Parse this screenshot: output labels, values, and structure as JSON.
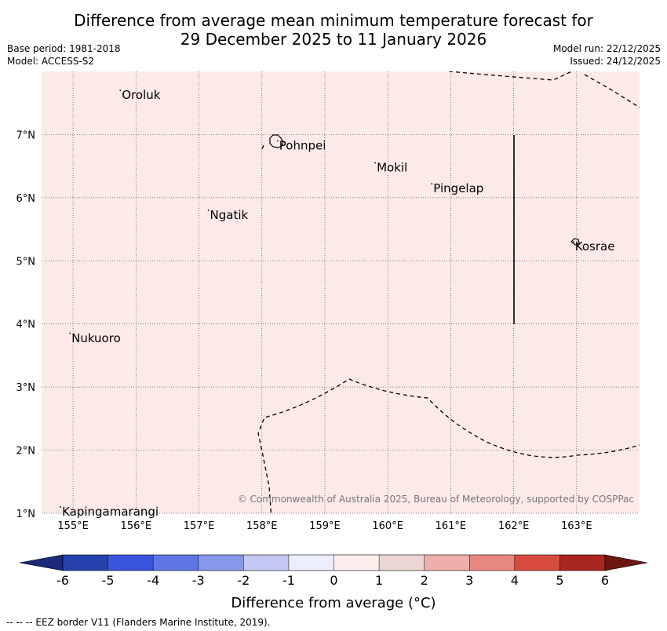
{
  "header": {
    "title_line1": "Difference from average mean minimum temperature forecast for",
    "title_line2": "29 December 2025 to 11 January 2026",
    "base_period": "Base period: 1981-2018",
    "model": "Model: ACCESS-S2",
    "model_run": "Model run: 22/12/2025",
    "issued": "Issued: 24/12/2025"
  },
  "map": {
    "lon_labels": [
      "155°E",
      "156°E",
      "157°E",
      "158°E",
      "159°E",
      "160°E",
      "161°E",
      "162°E",
      "163°E"
    ],
    "lat_labels": [
      "7°N",
      "6°N",
      "5°N",
      "4°N",
      "3°N",
      "2°N",
      "1°N"
    ],
    "places": [
      {
        "name": "Oroluk",
        "lon": 155.75,
        "lat": 7.7
      },
      {
        "name": "Pohnpei",
        "lon": 158.25,
        "lat": 6.9
      },
      {
        "name": "Mokil",
        "lon": 159.8,
        "lat": 6.55
      },
      {
        "name": "Pingelap",
        "lon": 160.7,
        "lat": 6.22
      },
      {
        "name": "Ngatik",
        "lon": 157.15,
        "lat": 5.8
      },
      {
        "name": "Kosrae",
        "lon": 162.95,
        "lat": 5.3
      },
      {
        "name": "Nukuoro",
        "lon": 154.95,
        "lat": 3.85
      },
      {
        "name": "Kapingamarangi",
        "lon": 154.8,
        "lat": 1.1
      }
    ],
    "background_color": "#fbeae8",
    "copyright": "© Commonwealth of Australia 2025, Bureau of Meteorology, supported by COSPPac"
  },
  "colorbar": {
    "ticks": [
      "-6",
      "-5",
      "-4",
      "-3",
      "-2",
      "-1",
      "0",
      "1",
      "2",
      "3",
      "4",
      "5",
      "6"
    ],
    "colors": [
      "#2541ad",
      "#3a54de",
      "#5f77e6",
      "#8797ea",
      "#c3c9f2",
      "#eceefb",
      "#fdeeee",
      "#ecd6d4",
      "#efaeaa",
      "#e78880",
      "#d94a3e",
      "#a8261f"
    ],
    "low_extend_color": "#1a2a78",
    "high_extend_color": "#6e1712",
    "label": "Difference from average (°C)"
  },
  "footer": {
    "legend": "--  --  -- EEZ border V11 (Flanders Marine Institute, 2019)."
  }
}
